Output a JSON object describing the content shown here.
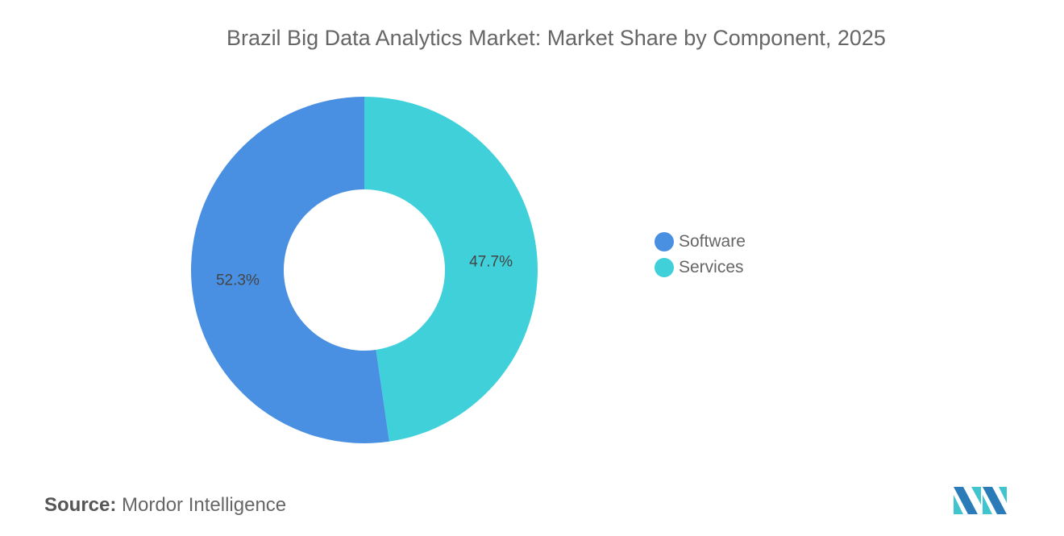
{
  "chart_data": {
    "type": "pie",
    "variant": "donut",
    "title": "Brazil Big Data Analytics Market: Market Share by Component, 2025",
    "categories": [
      "Software",
      "Services"
    ],
    "values": [
      52.3,
      47.7
    ],
    "data_labels": [
      "52.3%",
      "47.7%"
    ],
    "colors": [
      "#4A90E2",
      "#40D0DA"
    ],
    "legend_position": "right"
  },
  "source": {
    "label": "Source:",
    "text": "Mordor Intelligence"
  },
  "logo": {
    "colors": [
      "#2B7BB9",
      "#40C4CE"
    ]
  }
}
